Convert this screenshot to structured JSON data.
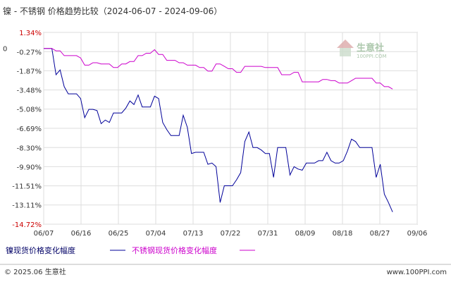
{
  "chart_data": {
    "type": "line",
    "title": "镍 - 不锈钢 价格趋势比较（2024-06-07 - 2024-09-06）",
    "x_tick_labels": [
      "06/07",
      "06/16",
      "06/25",
      "07/04",
      "07/13",
      "07/22",
      "07/31",
      "08/09",
      "08/18",
      "08/27",
      "09/06"
    ],
    "y_tick_labels": [
      "1.34%",
      "-0.27%",
      "-1.87%",
      "-3.48%",
      "-5.08%",
      "-6.69%",
      "-8.30%",
      "-9.90%",
      "-11.51%",
      "-13.11%",
      "-14.72%"
    ],
    "y_tick_values": [
      1.34,
      -0.27,
      -1.87,
      -3.48,
      -5.08,
      -6.69,
      -8.3,
      -9.9,
      -11.51,
      -13.11,
      -14.72
    ],
    "baseline_label": "0",
    "ylim": [
      -14.72,
      1.34
    ],
    "x_range": [
      0,
      91
    ],
    "grid": true,
    "legend_position": "bottom-left",
    "series": [
      {
        "name": "镍现货价格变化幅度",
        "color": "#000099",
        "points": [
          [
            0,
            0
          ],
          [
            1,
            0
          ],
          [
            2,
            0
          ],
          [
            3,
            -2.2
          ],
          [
            4,
            -1.8
          ],
          [
            5,
            -3.2
          ],
          [
            6,
            -3.8
          ],
          [
            7,
            -3.8
          ],
          [
            8,
            -3.8
          ],
          [
            9,
            -4.2
          ],
          [
            10,
            -5.8
          ],
          [
            11,
            -5.1
          ],
          [
            12,
            -5.1
          ],
          [
            13,
            -5.2
          ],
          [
            14,
            -6.3
          ],
          [
            15,
            -6.0
          ],
          [
            16,
            -6.2
          ],
          [
            17,
            -5.4
          ],
          [
            18,
            -5.4
          ],
          [
            19,
            -5.4
          ],
          [
            20,
            -5.0
          ],
          [
            21,
            -4.4
          ],
          [
            22,
            -4.7
          ],
          [
            23,
            -3.9
          ],
          [
            24,
            -4.9
          ],
          [
            25,
            -4.9
          ],
          [
            26,
            -4.9
          ],
          [
            27,
            -4.0
          ],
          [
            28,
            -4.2
          ],
          [
            29,
            -6.2
          ],
          [
            30,
            -6.8
          ],
          [
            31,
            -7.3
          ],
          [
            32,
            -7.3
          ],
          [
            33,
            -7.3
          ],
          [
            34,
            -5.6
          ],
          [
            35,
            -6.6
          ],
          [
            36,
            -8.8
          ],
          [
            37,
            -8.7
          ],
          [
            38,
            -8.7
          ],
          [
            39,
            -8.7
          ],
          [
            40,
            -9.7
          ],
          [
            41,
            -9.6
          ],
          [
            42,
            -9.9
          ],
          [
            43,
            -12.9
          ],
          [
            44,
            -11.5
          ],
          [
            45,
            -11.5
          ],
          [
            46,
            -11.5
          ],
          [
            47,
            -11.0
          ],
          [
            48,
            -10.4
          ],
          [
            49,
            -7.8
          ],
          [
            50,
            -7.0
          ],
          [
            51,
            -8.3
          ],
          [
            52,
            -8.3
          ],
          [
            53,
            -8.5
          ],
          [
            54,
            -8.8
          ],
          [
            55,
            -8.8
          ],
          [
            56,
            -10.8
          ],
          [
            57,
            -8.3
          ],
          [
            58,
            -8.3
          ],
          [
            59,
            -8.3
          ],
          [
            60,
            -10.6
          ],
          [
            61,
            -9.9
          ],
          [
            62,
            -10.1
          ],
          [
            63,
            -10.2
          ],
          [
            64,
            -9.6
          ],
          [
            65,
            -9.6
          ],
          [
            66,
            -9.6
          ],
          [
            67,
            -9.4
          ],
          [
            68,
            -9.4
          ],
          [
            69,
            -8.7
          ],
          [
            70,
            -9.4
          ],
          [
            71,
            -9.6
          ],
          [
            72,
            -9.6
          ],
          [
            73,
            -9.4
          ],
          [
            74,
            -8.6
          ],
          [
            75,
            -7.6
          ],
          [
            76,
            -7.8
          ],
          [
            77,
            -8.3
          ],
          [
            78,
            -8.3
          ],
          [
            79,
            -8.3
          ],
          [
            80,
            -8.3
          ],
          [
            81,
            -10.8
          ],
          [
            82,
            -9.7
          ],
          [
            83,
            -12.2
          ],
          [
            84,
            -12.9
          ],
          [
            85,
            -13.7
          ]
        ]
      },
      {
        "name": "不锈钢现货价格变化幅度",
        "color": "#cc00cc",
        "points": [
          [
            0,
            0
          ],
          [
            1,
            0
          ],
          [
            2,
            0
          ],
          [
            3,
            -0.2
          ],
          [
            4,
            -0.2
          ],
          [
            5,
            -0.6
          ],
          [
            6,
            -0.6
          ],
          [
            7,
            -0.6
          ],
          [
            8,
            -0.6
          ],
          [
            9,
            -0.8
          ],
          [
            10,
            -1.4
          ],
          [
            11,
            -1.4
          ],
          [
            12,
            -1.2
          ],
          [
            13,
            -1.2
          ],
          [
            14,
            -1.3
          ],
          [
            15,
            -1.3
          ],
          [
            16,
            -1.3
          ],
          [
            17,
            -1.6
          ],
          [
            18,
            -1.6
          ],
          [
            19,
            -1.3
          ],
          [
            20,
            -1.3
          ],
          [
            21,
            -1.1
          ],
          [
            22,
            -1.1
          ],
          [
            23,
            -0.6
          ],
          [
            24,
            -0.6
          ],
          [
            25,
            -0.4
          ],
          [
            26,
            -0.4
          ],
          [
            27,
            -0.1
          ],
          [
            28,
            -0.5
          ],
          [
            29,
            -0.5
          ],
          [
            30,
            -1.0
          ],
          [
            31,
            -1.0
          ],
          [
            32,
            -1.0
          ],
          [
            33,
            -1.2
          ],
          [
            34,
            -1.2
          ],
          [
            35,
            -1.4
          ],
          [
            36,
            -1.4
          ],
          [
            37,
            -1.4
          ],
          [
            38,
            -1.6
          ],
          [
            39,
            -1.6
          ],
          [
            40,
            -1.9
          ],
          [
            41,
            -1.9
          ],
          [
            42,
            -1.3
          ],
          [
            43,
            -1.3
          ],
          [
            44,
            -1.5
          ],
          [
            45,
            -1.7
          ],
          [
            46,
            -1.7
          ],
          [
            47,
            -2.0
          ],
          [
            48,
            -2.0
          ],
          [
            49,
            -1.5
          ],
          [
            50,
            -1.5
          ],
          [
            51,
            -1.5
          ],
          [
            52,
            -1.5
          ],
          [
            53,
            -1.5
          ],
          [
            54,
            -1.6
          ],
          [
            55,
            -1.6
          ],
          [
            56,
            -1.6
          ],
          [
            57,
            -1.6
          ],
          [
            58,
            -2.2
          ],
          [
            59,
            -2.2
          ],
          [
            60,
            -2.2
          ],
          [
            61,
            -2.0
          ],
          [
            62,
            -2.0
          ],
          [
            63,
            -2.8
          ],
          [
            64,
            -2.8
          ],
          [
            65,
            -2.8
          ],
          [
            66,
            -2.8
          ],
          [
            67,
            -2.8
          ],
          [
            68,
            -2.6
          ],
          [
            69,
            -2.6
          ],
          [
            70,
            -2.7
          ],
          [
            71,
            -2.7
          ],
          [
            72,
            -2.9
          ],
          [
            73,
            -2.9
          ],
          [
            74,
            -2.9
          ],
          [
            75,
            -2.7
          ],
          [
            76,
            -2.5
          ],
          [
            77,
            -2.5
          ],
          [
            78,
            -2.5
          ],
          [
            79,
            -2.5
          ],
          [
            80,
            -2.5
          ],
          [
            81,
            -2.9
          ],
          [
            82,
            -2.9
          ],
          [
            83,
            -3.2
          ],
          [
            84,
            -3.2
          ],
          [
            85,
            -3.4
          ]
        ]
      }
    ]
  },
  "watermark": {
    "brand": "生意社",
    "site": "100PPI.COM"
  },
  "footer": {
    "copyright": "© 2025.06 生意社",
    "url": "www.100PPI.com"
  }
}
